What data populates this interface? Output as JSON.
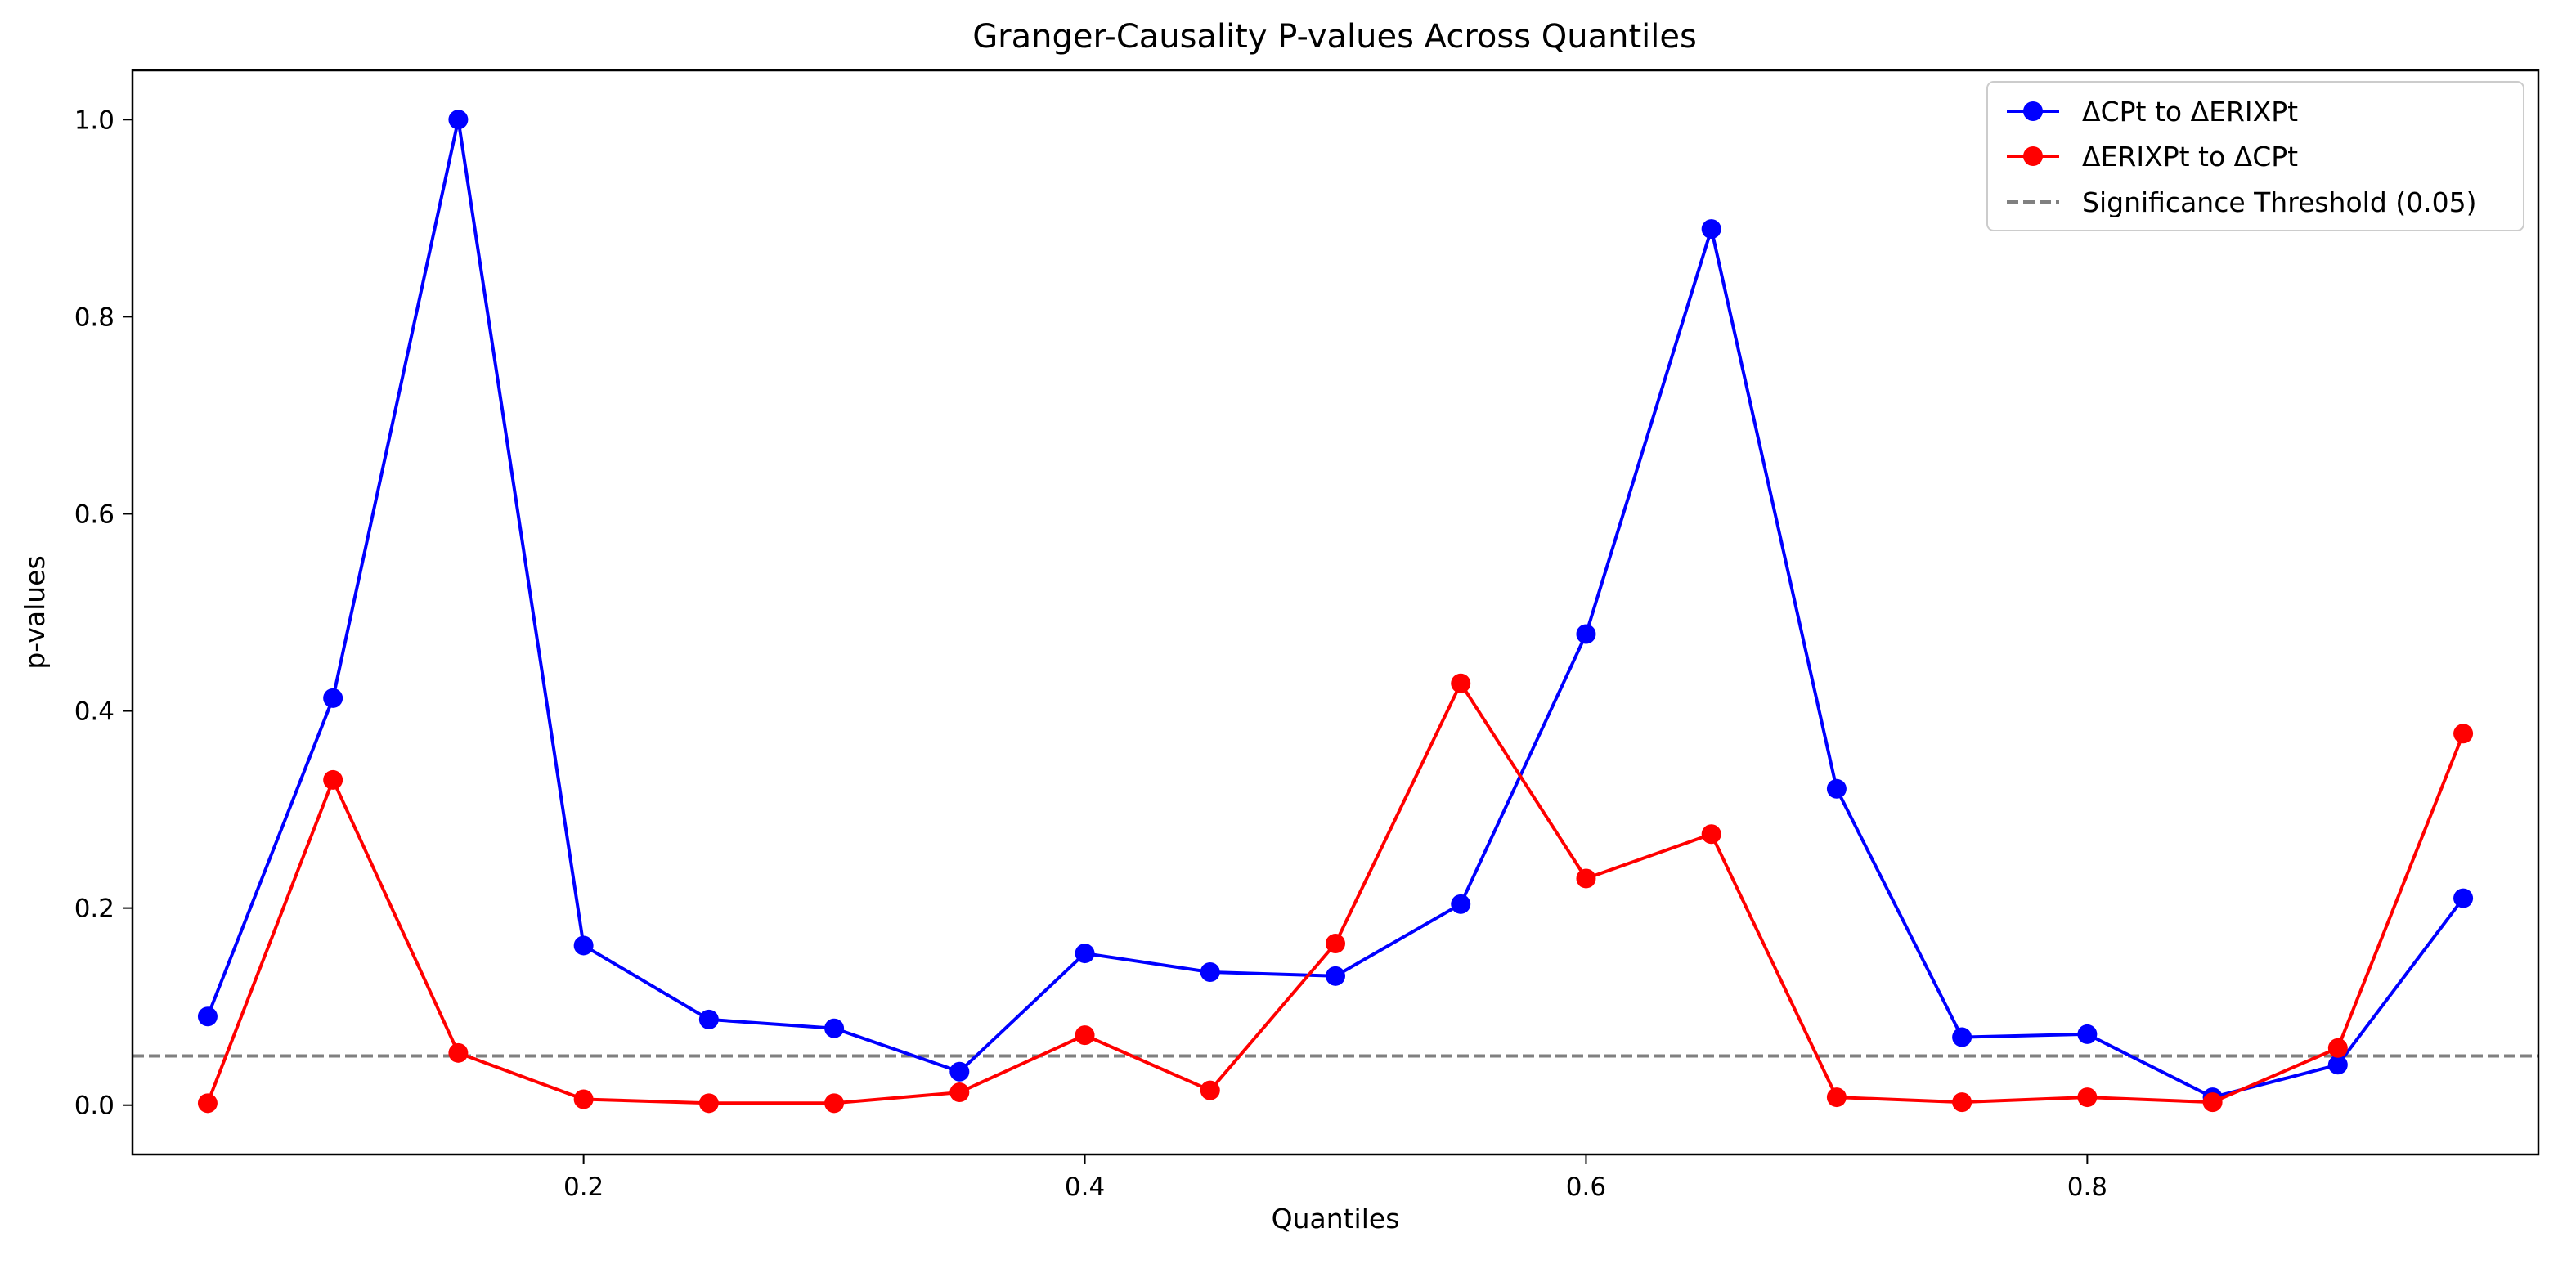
{
  "chart_data": {
    "type": "line",
    "title": "Granger-Causality P-values Across Quantiles",
    "xlabel": "Quantiles",
    "ylabel": "p-values",
    "xlim": [
      0.02,
      0.98
    ],
    "ylim": [
      -0.05,
      1.05
    ],
    "xticks": [
      0.2,
      0.4,
      0.6,
      0.8
    ],
    "xtick_labels": [
      "0.2",
      "0.4",
      "0.6",
      "0.8"
    ],
    "yticks": [
      0.0,
      0.2,
      0.4,
      0.6,
      0.8,
      1.0
    ],
    "ytick_labels": [
      "0.0",
      "0.2",
      "0.4",
      "0.6",
      "0.8",
      "1.0"
    ],
    "grid": false,
    "legend_position": "top-right",
    "x": [
      0.05,
      0.1,
      0.15,
      0.2,
      0.25,
      0.3,
      0.35,
      0.4,
      0.45,
      0.5,
      0.55,
      0.6,
      0.65,
      0.7,
      0.75,
      0.8,
      0.85,
      0.9,
      0.95
    ],
    "series": [
      {
        "name": "ΔCPt to ΔERIXPt",
        "color": "#0000ff",
        "marker": "circle",
        "values": [
          0.09,
          0.413,
          1.0,
          0.162,
          0.087,
          0.078,
          0.034,
          0.154,
          0.135,
          0.131,
          0.204,
          0.478,
          0.889,
          0.321,
          0.069,
          0.072,
          0.008,
          0.041,
          0.21
        ]
      },
      {
        "name": "ΔERIXPt to ΔCPt",
        "color": "#ff0000",
        "marker": "circle",
        "values": [
          0.002,
          0.33,
          0.053,
          0.006,
          0.002,
          0.002,
          0.013,
          0.071,
          0.015,
          0.164,
          0.428,
          0.23,
          0.275,
          0.008,
          0.003,
          0.008,
          0.003,
          0.058,
          0.377
        ]
      }
    ],
    "reference_lines": [
      {
        "name": "Significance Threshold (0.05)",
        "orientation": "horizontal",
        "value": 0.05,
        "color": "#808080",
        "style": "dashed"
      }
    ]
  }
}
